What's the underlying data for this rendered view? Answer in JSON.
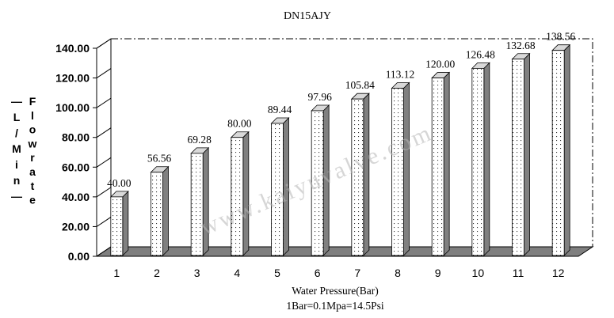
{
  "chart_data": {
    "type": "bar",
    "title": "DN15AJY",
    "xlabel": "Water Pressure(Bar)",
    "subtitle": "1Bar=0.1Mpa=14.5Psi",
    "ylabel_left": "(L/Min)",
    "ylabel_right": "Flowrate",
    "categories": [
      "1",
      "2",
      "3",
      "4",
      "5",
      "6",
      "7",
      "8",
      "9",
      "10",
      "11",
      "12"
    ],
    "values": [
      40.0,
      56.56,
      69.28,
      80.0,
      89.44,
      97.96,
      105.84,
      113.12,
      120.0,
      126.48,
      132.68,
      138.56
    ],
    "data_labels": [
      "40.00",
      "56.56",
      "69.28",
      "80.00",
      "89.44",
      "97.96",
      "105.84",
      "113.12",
      "120.00",
      "126.48",
      "132.68",
      "138.56"
    ],
    "yticks": [
      "0.00",
      "20.00",
      "40.00",
      "60.00",
      "80.00",
      "100.00",
      "120.00",
      "140.00"
    ],
    "ylim": [
      0,
      140
    ],
    "grid": false,
    "legend": "none",
    "style": "3d-column",
    "bar_pattern": "dotted",
    "watermark": "www.kaiyuvalve.com",
    "colors": {
      "bar_face": "#ffffff",
      "bar_side": "#808080",
      "bar_top": "#d9d9d9",
      "floor": "#7f7f7f",
      "axis": "#000000",
      "text": "#000000"
    }
  }
}
